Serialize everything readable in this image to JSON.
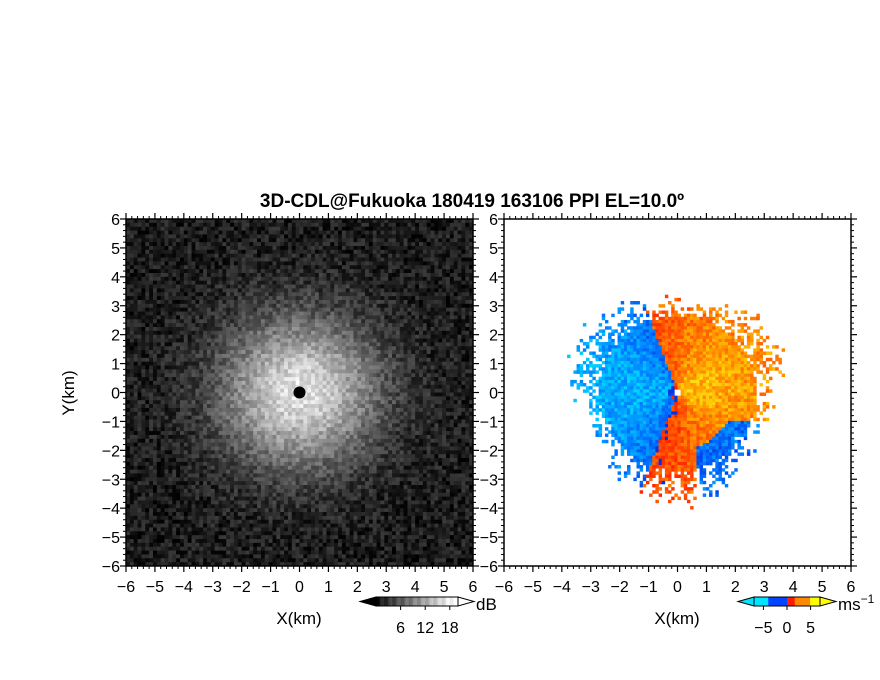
{
  "chart_data": {
    "title": "3D-CDL@Fukuoka 180419 163106 PPI EL=10.0º",
    "panels": [
      {
        "type": "heatmap",
        "field": "backscatter intensity",
        "xlabel": "X(km)",
        "ylabel": "Y(km)",
        "xlim": [
          -6,
          6
        ],
        "ylim": [
          -6,
          6
        ],
        "xticks": [
          "−6",
          "−5",
          "−4",
          "−3",
          "−2",
          "−1",
          "0",
          "1",
          "2",
          "3",
          "4",
          "5",
          "6"
        ],
        "yticks": [
          "−6",
          "−5",
          "−4",
          "−3",
          "−2",
          "−1",
          "0",
          "1",
          "2",
          "3",
          "4",
          "5",
          "6"
        ],
        "colormap": [
          "#000000",
          "#ffffff"
        ],
        "colorbar": {
          "unit": "dB",
          "ticks": [
            6,
            12,
            18
          ],
          "tick_labels": [
            "6",
            "12",
            "18"
          ],
          "range": [
            0,
            20
          ]
        },
        "center_marker": {
          "x": 0,
          "y": 0
        }
      },
      {
        "type": "heatmap",
        "field": "Doppler velocity",
        "xlabel": "X(km)",
        "ylabel": "",
        "xlim": [
          -6,
          6
        ],
        "ylim": [
          -6,
          6
        ],
        "xticks": [
          "−6",
          "−5",
          "−4",
          "−3",
          "−2",
          "−1",
          "0",
          "1",
          "2",
          "3",
          "4",
          "5",
          "6"
        ],
        "yticks": [
          "−6",
          "−5",
          "−4",
          "−3",
          "−2",
          "−1",
          "0",
          "1",
          "2",
          "3",
          "4",
          "5",
          "6"
        ],
        "colormap": [
          "#00e5ff",
          "#0044ff",
          "#ff1a00",
          "#ff8800",
          "#ffff00"
        ],
        "colorbar": {
          "unit": "ms",
          "unit_exponent": "−1",
          "ticks": [
            -5,
            0,
            5
          ],
          "tick_labels": [
            "−5",
            "0",
            "5"
          ],
          "range": [
            -7,
            7
          ]
        },
        "data_extent_km": 3.3
      }
    ]
  }
}
